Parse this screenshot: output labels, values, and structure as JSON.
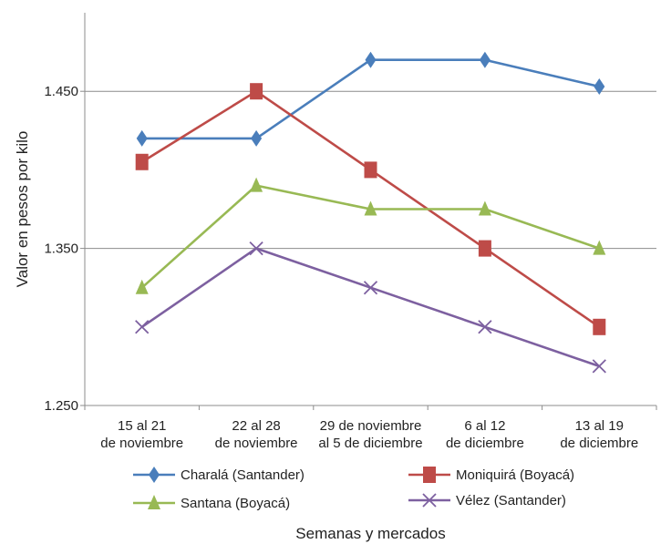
{
  "chart_data": {
    "type": "line",
    "title": "",
    "xlabel": "Semanas y mercados",
    "ylabel": "Valor en pesos por kilo",
    "categories": [
      [
        "15 al 21",
        "de noviembre"
      ],
      [
        "22 al 28",
        "de noviembre"
      ],
      [
        "29 de noviembre",
        "al 5 de diciembre"
      ],
      [
        "6 al 12",
        "de diciembre"
      ],
      [
        "13 al 19",
        "de diciembre"
      ]
    ],
    "ylim": [
      1250,
      1500
    ],
    "yticks": [
      {
        "value": 1250,
        "label": "1.250"
      },
      {
        "value": 1350,
        "label": "1.350"
      },
      {
        "value": 1450,
        "label": "1.450"
      }
    ],
    "grid": true,
    "legend_position": "bottom",
    "series": [
      {
        "name": "Charalá (Santander)",
        "color": "#4a7ebb",
        "marker": "diamond",
        "values": [
          1420,
          1420,
          1470,
          1470,
          1453
        ]
      },
      {
        "name": "Moniquirá (Boyacá)",
        "color": "#be4b48",
        "marker": "square",
        "values": [
          1405,
          1450,
          1400,
          1350,
          1300
        ]
      },
      {
        "name": "Santana (Boyacá)",
        "color": "#98b954",
        "marker": "triangle",
        "values": [
          1325,
          1390,
          1375,
          1375,
          1350
        ]
      },
      {
        "name": "Vélez (Santander)",
        "color": "#7d60a0",
        "marker": "x",
        "values": [
          1300,
          1350,
          1325,
          1300,
          1275
        ]
      }
    ]
  }
}
